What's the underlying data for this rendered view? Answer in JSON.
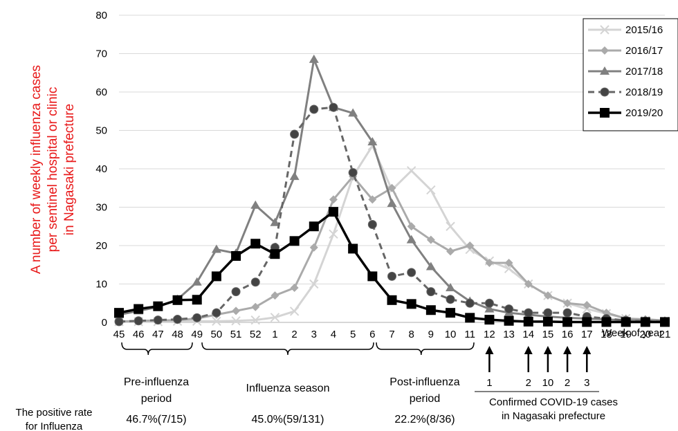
{
  "chart_data": {
    "type": "line",
    "ylabel_lines": [
      "A number of weekly influenza cases",
      "per sentinel hospital or clinic",
      "in Nagasaki prefecture"
    ],
    "xlabel": "Week of year",
    "categories": [
      "45",
      "46",
      "47",
      "48",
      "49",
      "50",
      "51",
      "52",
      "1",
      "2",
      "3",
      "4",
      "5",
      "6",
      "7",
      "8",
      "9",
      "10",
      "11",
      "12",
      "13",
      "14",
      "15",
      "16",
      "17",
      "18",
      "19",
      "20",
      "21"
    ],
    "ylim": [
      0,
      80
    ],
    "yticks": [
      0,
      10,
      20,
      30,
      40,
      50,
      60,
      70,
      80
    ],
    "grid": true,
    "legend_position": "top-right",
    "series": [
      {
        "name": "2015/16",
        "color": "#d4d4d4",
        "marker": "x",
        "dash": false,
        "width": 3,
        "values": [
          0.2,
          0.2,
          0.2,
          0.3,
          0.3,
          0.3,
          0.4,
          0.6,
          1.3,
          2.9,
          10,
          23,
          38,
          46,
          34.5,
          39.5,
          34.5,
          25,
          19,
          16,
          14,
          10,
          7,
          5,
          3.5,
          2.3,
          1,
          0.5,
          0.3
        ]
      },
      {
        "name": "2016/17",
        "color": "#aaaaaa",
        "marker": "diamond",
        "dash": false,
        "width": 3,
        "values": [
          0.2,
          0.4,
          0.5,
          0.6,
          1,
          2,
          3,
          4,
          7,
          9,
          19.5,
          32,
          38,
          32,
          35,
          25,
          21.5,
          18.5,
          20,
          15.5,
          15.5,
          10,
          7,
          5,
          4.5,
          2.5,
          1,
          0.8,
          0.5
        ]
      },
      {
        "name": "2017/18",
        "color": "#808080",
        "marker": "triangle",
        "dash": false,
        "width": 3,
        "values": [
          2,
          3,
          4,
          6,
          10.5,
          19,
          18,
          30.5,
          26,
          38,
          68.5,
          56,
          54.5,
          47,
          31,
          21.5,
          14.5,
          9,
          5.5,
          3.5,
          2.5,
          2,
          1.5,
          1.2,
          1,
          0.8,
          0.5,
          0.5,
          0.3
        ]
      },
      {
        "name": "2018/19",
        "color": "#666666",
        "marker": "circle",
        "dash": true,
        "width": 3,
        "values": [
          0.2,
          0.4,
          0.6,
          0.8,
          1.2,
          2.5,
          8,
          10.5,
          19.5,
          49,
          55.5,
          56,
          39,
          25.5,
          12,
          13,
          8,
          6,
          5,
          5,
          3.5,
          2.5,
          2.5,
          2.5,
          1.5,
          1,
          0.5,
          0.3,
          0.2
        ]
      },
      {
        "name": "2019/20",
        "color": "#000000",
        "marker": "square",
        "dash": false,
        "width": 3.5,
        "values": [
          2.5,
          3.5,
          4.2,
          5.8,
          5.9,
          12,
          17.3,
          20.5,
          17.8,
          21.2,
          25,
          28.8,
          19.2,
          12,
          5.8,
          4.8,
          3.2,
          2.5,
          1.2,
          0.7,
          0.4,
          0.2,
          0.2,
          0.1,
          0.1,
          0.1,
          0.1,
          0.1,
          0.1
        ]
      }
    ],
    "periods": [
      {
        "label_lines": [
          "Pre-influenza",
          "period"
        ],
        "from": "45",
        "to": "48",
        "rate": "46.7%(7/15)"
      },
      {
        "label_lines": [
          "Influenza season"
        ],
        "from": "50",
        "to": "5",
        "rate": "45.0%(59/131)"
      },
      {
        "label_lines": [
          "Post-influenza",
          "period"
        ],
        "from": "7",
        "to": "10",
        "rate": "22.2%(8/36)"
      }
    ],
    "rate_label_lines": [
      "The positive rate",
      "for Influenza"
    ],
    "covid_arrows": [
      {
        "week": "12",
        "count": "1"
      },
      {
        "week": "14",
        "count": "2"
      },
      {
        "week": "15",
        "count": "10"
      },
      {
        "week": "16",
        "count": "2"
      },
      {
        "week": "17",
        "count": "3"
      }
    ],
    "covid_label_lines": [
      "Confirmed COVID-19 cases",
      "in Nagasaki prefecture"
    ],
    "colors": {
      "ylabel": "#e8191a",
      "grid": "#d9d9d9",
      "axis": "#bfbfbf",
      "text": "#000000"
    }
  }
}
